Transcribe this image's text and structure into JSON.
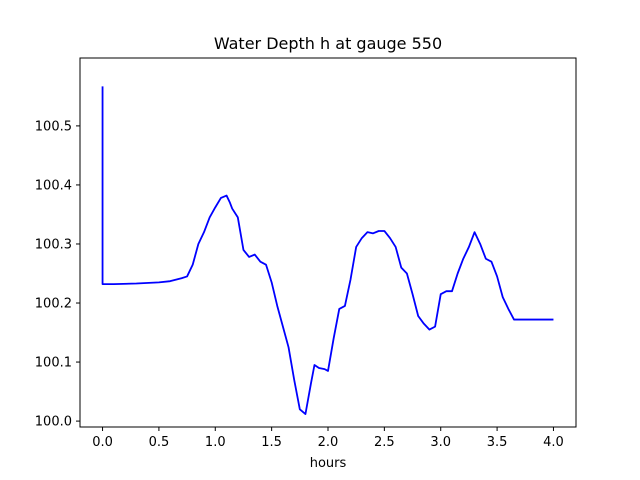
{
  "chart_data": {
    "type": "line",
    "title": "Water Depth h at gauge 550",
    "xlabel": "hours",
    "ylabel": "",
    "xlim": [
      -0.2,
      4.2
    ],
    "ylim": [
      99.99,
      100.615
    ],
    "grid": false,
    "x_ticks": [
      0.0,
      0.5,
      1.0,
      1.5,
      2.0,
      2.5,
      3.0,
      3.5,
      4.0
    ],
    "x_tick_labels": [
      "0.0",
      "0.5",
      "1.0",
      "1.5",
      "2.0",
      "2.5",
      "3.0",
      "3.5",
      "4.0"
    ],
    "y_ticks": [
      100.0,
      100.1,
      100.2,
      100.3,
      100.4,
      100.5
    ],
    "y_tick_labels": [
      "100.0",
      "100.1",
      "100.2",
      "100.3",
      "100.4",
      "100.5"
    ],
    "series": [
      {
        "color": "#0000ff",
        "x": [
          0.0,
          0.0,
          0.0,
          0.1,
          0.3,
          0.5,
          0.6,
          0.7,
          0.75,
          0.8,
          0.85,
          0.9,
          0.95,
          1.0,
          1.05,
          1.1,
          1.13,
          1.15,
          1.2,
          1.25,
          1.3,
          1.35,
          1.4,
          1.45,
          1.5,
          1.55,
          1.6,
          1.65,
          1.7,
          1.75,
          1.8,
          1.85,
          1.88,
          1.92,
          1.97,
          2.0,
          2.05,
          2.1,
          2.15,
          2.2,
          2.25,
          2.3,
          2.35,
          2.4,
          2.45,
          2.5,
          2.55,
          2.6,
          2.65,
          2.7,
          2.75,
          2.8,
          2.85,
          2.9,
          2.95,
          3.0,
          3.05,
          3.1,
          3.15,
          3.2,
          3.25,
          3.3,
          3.35,
          3.4,
          3.45,
          3.5,
          3.55,
          3.6,
          3.65,
          3.7,
          3.75,
          3.8,
          3.85,
          3.9,
          3.95,
          4.0
        ],
        "y": [
          100.567,
          100.232,
          100.232,
          100.232,
          100.233,
          100.235,
          100.237,
          100.242,
          100.245,
          100.265,
          100.3,
          100.32,
          100.345,
          100.362,
          100.378,
          100.382,
          100.37,
          100.36,
          100.345,
          100.29,
          100.278,
          100.282,
          100.27,
          100.265,
          100.235,
          100.195,
          100.16,
          100.125,
          100.07,
          100.02,
          100.012,
          100.065,
          100.095,
          100.09,
          100.088,
          100.085,
          100.14,
          100.19,
          100.195,
          100.24,
          100.295,
          100.31,
          100.32,
          100.318,
          100.322,
          100.322,
          100.31,
          100.295,
          100.26,
          100.25,
          100.215,
          100.178,
          100.165,
          100.155,
          100.16,
          100.215,
          100.22,
          100.22,
          100.25,
          100.275,
          100.295,
          100.32,
          100.3,
          100.275,
          100.27,
          100.245,
          100.21,
          100.19,
          100.172,
          100.172,
          100.172,
          100.172,
          100.172,
          100.172,
          100.172,
          100.172
        ]
      }
    ]
  }
}
